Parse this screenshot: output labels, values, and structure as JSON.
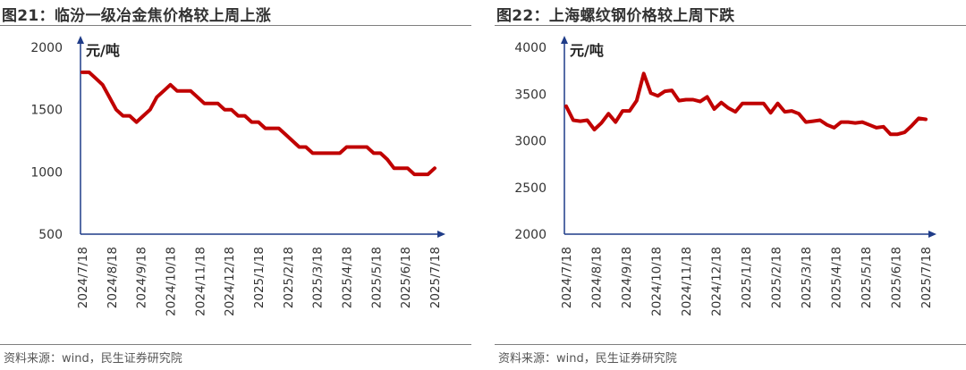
{
  "charts": [
    {
      "title": "图21：临汾一级冶金焦价格较上周上涨",
      "source": "资料来源：wind，民生证券研究院",
      "unit": "元/吨",
      "type": "line",
      "color": "#C00000",
      "ylim": [
        500,
        2000
      ],
      "yticks": [
        500,
        1000,
        1500,
        2000
      ],
      "xlabels": [
        "2024/7/18",
        "2024/8/18",
        "2024/9/18",
        "2024/10/18",
        "2024/11/18",
        "2024/12/18",
        "2025/1/18",
        "2025/2/18",
        "2025/3/18",
        "2025/4/18",
        "2025/5/18",
        "2025/6/18",
        "2025/7/18"
      ],
      "values": [
        1800,
        1800,
        1750,
        1700,
        1600,
        1500,
        1450,
        1450,
        1400,
        1450,
        1500,
        1600,
        1650,
        1700,
        1650,
        1650,
        1650,
        1600,
        1550,
        1550,
        1550,
        1500,
        1500,
        1450,
        1450,
        1400,
        1400,
        1350,
        1350,
        1350,
        1300,
        1250,
        1200,
        1200,
        1150,
        1150,
        1150,
        1150,
        1150,
        1200,
        1200,
        1200,
        1200,
        1150,
        1150,
        1100,
        1030,
        1030,
        1030,
        980,
        980,
        980,
        1030
      ]
    },
    {
      "title": "图22：上海螺纹钢价格较上周下跌",
      "source": "资料来源：wind，民生证券研究院",
      "unit": "元/吨",
      "type": "line",
      "color": "#C00000",
      "ylim": [
        2000,
        4000
      ],
      "yticks": [
        2000,
        2500,
        3000,
        3500,
        4000
      ],
      "xlabels": [
        "2024/7/18",
        "2024/8/18",
        "2024/9/18",
        "2024/10/18",
        "2024/11/18",
        "2024/12/18",
        "2025/1/18",
        "2025/2/18",
        "2025/3/18",
        "2025/4/18",
        "2025/5/18",
        "2025/6/18",
        "2025/7/18"
      ],
      "values": [
        3370,
        3220,
        3210,
        3220,
        3120,
        3190,
        3290,
        3200,
        3320,
        3320,
        3430,
        3720,
        3510,
        3480,
        3530,
        3540,
        3430,
        3440,
        3440,
        3420,
        3470,
        3340,
        3410,
        3350,
        3310,
        3400,
        3400,
        3400,
        3400,
        3300,
        3400,
        3310,
        3320,
        3290,
        3200,
        3210,
        3220,
        3170,
        3140,
        3200,
        3200,
        3190,
        3200,
        3170,
        3140,
        3150,
        3070,
        3070,
        3090,
        3160,
        3240,
        3230
      ]
    }
  ]
}
